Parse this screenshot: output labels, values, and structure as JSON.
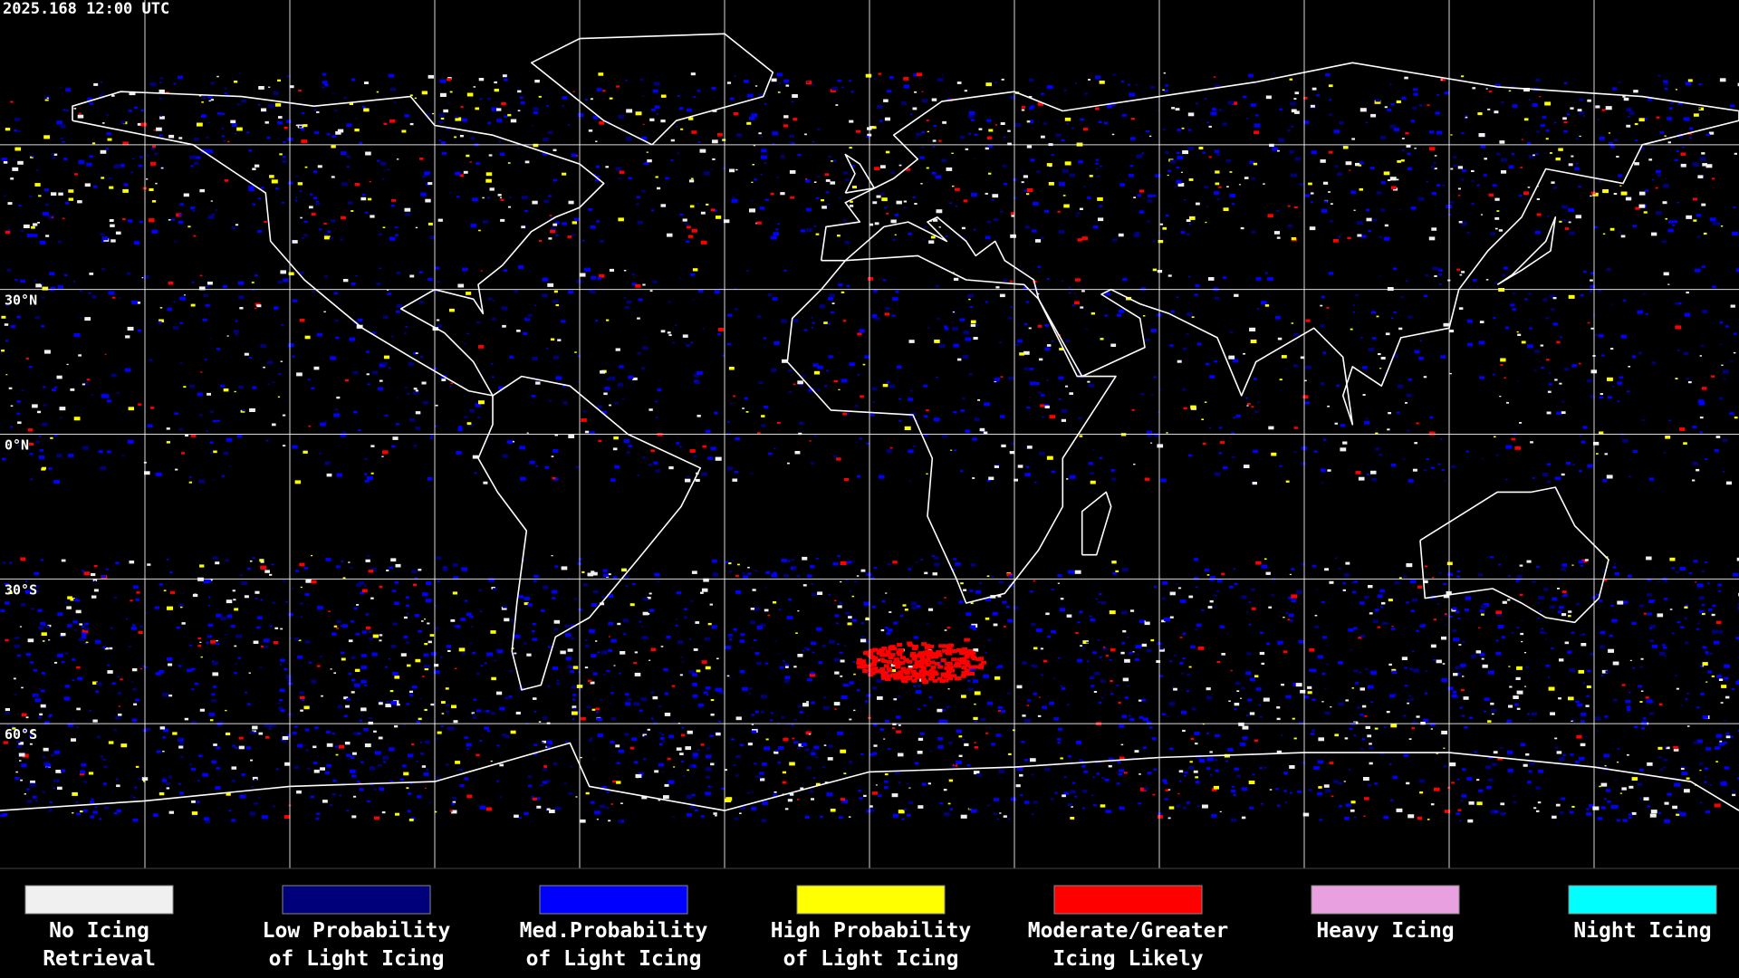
{
  "header": {
    "timestamp": "2025.168 12:00 UTC"
  },
  "lat_labels": [
    "30°N",
    "0°N",
    "30°S",
    "60°S"
  ],
  "legend": [
    {
      "label": [
        "No Icing",
        "Retrieval"
      ],
      "color": "#f0f0f0"
    },
    {
      "label": [
        "Low Probability",
        "of Light Icing"
      ],
      "color": "#00007a"
    },
    {
      "label": [
        "Med.Probability",
        "of Light Icing"
      ],
      "color": "#0000ff"
    },
    {
      "label": [
        "High Probability",
        "of Light Icing"
      ],
      "color": "#ffff00"
    },
    {
      "label": [
        "Moderate/Greater",
        "Icing Likely"
      ],
      "color": "#ff0000"
    },
    {
      "label": [
        "Heavy Icing"
      ],
      "color": "#e8a0e0"
    },
    {
      "label": [
        "Night Icing"
      ],
      "color": "#00ffff"
    }
  ]
}
